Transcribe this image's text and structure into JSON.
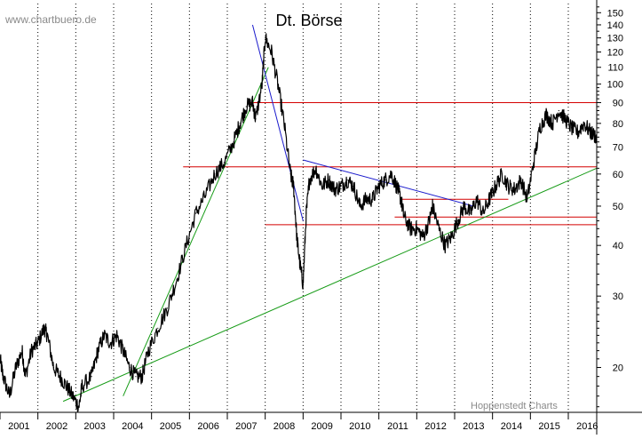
{
  "chart_data": {
    "type": "line",
    "title": "Dt. Börse",
    "watermark": "www.chartbuero.de",
    "source": "Hoppenstedt Charts",
    "y_scale": "log",
    "ylim": [
      15.5,
      158
    ],
    "xlim": [
      "2001-01-01",
      "2016-10-01"
    ],
    "grid": true,
    "grid_style": "dotted vertical",
    "x_ticks": [
      "2001",
      "2002",
      "2003",
      "2004",
      "2005",
      "2006",
      "2007",
      "2008",
      "2009",
      "2010",
      "2011",
      "2012",
      "2013",
      "2014",
      "2015",
      "2016"
    ],
    "y_ticks": [
      20,
      30,
      40,
      50,
      60,
      70,
      80,
      90,
      100,
      110,
      120,
      130,
      140,
      150
    ],
    "y_tick_labels": [
      "20",
      "30",
      "40",
      "50",
      "60",
      "70",
      "80",
      "90",
      "100",
      "110",
      "120",
      "130",
      "140",
      "150"
    ],
    "colors": {
      "price": "#000000",
      "support": "#d40000",
      "uptrend": "#169b16",
      "downtrend": "#1a1acc",
      "axis_text": "#000000",
      "label_gray": "#8a8a8a"
    },
    "series": [
      {
        "style": "price",
        "x": [
          "2001-01",
          "2001-02",
          "2001-04",
          "2001-06",
          "2001-08",
          "2001-09",
          "2001-11",
          "2002-01",
          "2002-03",
          "2002-04",
          "2002-06",
          "2002-08",
          "2002-10",
          "2002-12",
          "2003-02",
          "2003-03",
          "2003-06",
          "2003-08",
          "2003-10",
          "2003-12",
          "2004-02",
          "2004-04",
          "2004-06",
          "2004-08",
          "2004-10",
          "2004-12",
          "2005-03",
          "2005-06",
          "2005-09",
          "2005-12",
          "2006-03",
          "2006-06",
          "2006-09",
          "2006-12",
          "2007-03",
          "2007-05",
          "2007-07",
          "2007-09",
          "2007-10",
          "2007-12",
          "2008-01",
          "2008-03",
          "2008-05",
          "2008-07",
          "2008-09",
          "2008-10",
          "2008-11",
          "2008-12",
          "2009-01",
          "2009-02",
          "2009-03",
          "2009-05",
          "2009-07",
          "2009-09",
          "2009-11",
          "2010-01",
          "2010-03",
          "2010-05",
          "2010-07",
          "2010-09",
          "2010-11",
          "2011-01",
          "2011-03",
          "2011-05",
          "2011-07",
          "2011-08",
          "2011-09",
          "2011-11",
          "2012-01",
          "2012-03",
          "2012-05",
          "2012-06",
          "2012-08",
          "2012-10",
          "2012-12",
          "2013-02",
          "2013-04",
          "2013-06",
          "2013-08",
          "2013-10",
          "2013-12",
          "2014-02",
          "2014-04",
          "2014-06",
          "2014-08",
          "2014-10",
          "2014-12",
          "2015-02",
          "2015-04",
          "2015-06",
          "2015-08",
          "2015-10",
          "2015-12",
          "2016-02",
          "2016-04",
          "2016-06",
          "2016-08",
          "2016-10"
        ],
        "values": [
          21,
          19,
          17,
          20,
          22,
          19,
          22,
          23,
          25,
          24,
          20,
          19,
          18,
          17,
          16,
          18,
          19,
          22,
          24,
          23,
          24,
          22,
          20,
          19,
          19,
          22,
          25,
          28,
          33,
          40,
          48,
          53,
          60,
          64,
          72,
          80,
          88,
          90,
          82,
          100,
          130,
          120,
          100,
          80,
          60,
          56,
          42,
          36,
          32,
          48,
          58,
          62,
          56,
          58,
          55,
          56,
          58,
          56,
          50,
          52,
          52,
          56,
          58,
          60,
          55,
          52,
          47,
          44,
          44,
          42,
          46,
          50,
          44,
          40,
          42,
          46,
          50,
          48,
          52,
          48,
          52,
          56,
          60,
          56,
          55,
          58,
          52,
          64,
          78,
          84,
          80,
          86,
          82,
          78,
          76,
          80,
          76,
          74
        ]
      },
      {
        "style": "support",
        "x": [
          "2007-08",
          "2017-01"
        ],
        "values": [
          90,
          90
        ]
      },
      {
        "style": "support",
        "x": [
          "2005-11",
          "2017-01"
        ],
        "values": [
          62.5,
          62.5
        ]
      },
      {
        "style": "support",
        "x": [
          "2011-08",
          "2014-06"
        ],
        "values": [
          52,
          52
        ]
      },
      {
        "style": "support",
        "x": [
          "2011-06",
          "2017-01"
        ],
        "values": [
          47,
          47
        ]
      },
      {
        "style": "support",
        "x": [
          "2008-01",
          "2017-01"
        ],
        "values": [
          45,
          45
        ]
      },
      {
        "style": "uptrend",
        "x": [
          "2002-09",
          "2016-10"
        ],
        "values": [
          16.5,
          62
        ]
      },
      {
        "style": "uptrend",
        "x": [
          "2004-04",
          "2008-02"
        ],
        "values": [
          17,
          110
        ]
      },
      {
        "style": "downtrend",
        "x": [
          "2007-09",
          "2009-01"
        ],
        "values": [
          140,
          46
        ]
      },
      {
        "style": "downtrend",
        "x": [
          "2009-01",
          "2013-07"
        ],
        "values": [
          65,
          50
        ]
      }
    ]
  }
}
